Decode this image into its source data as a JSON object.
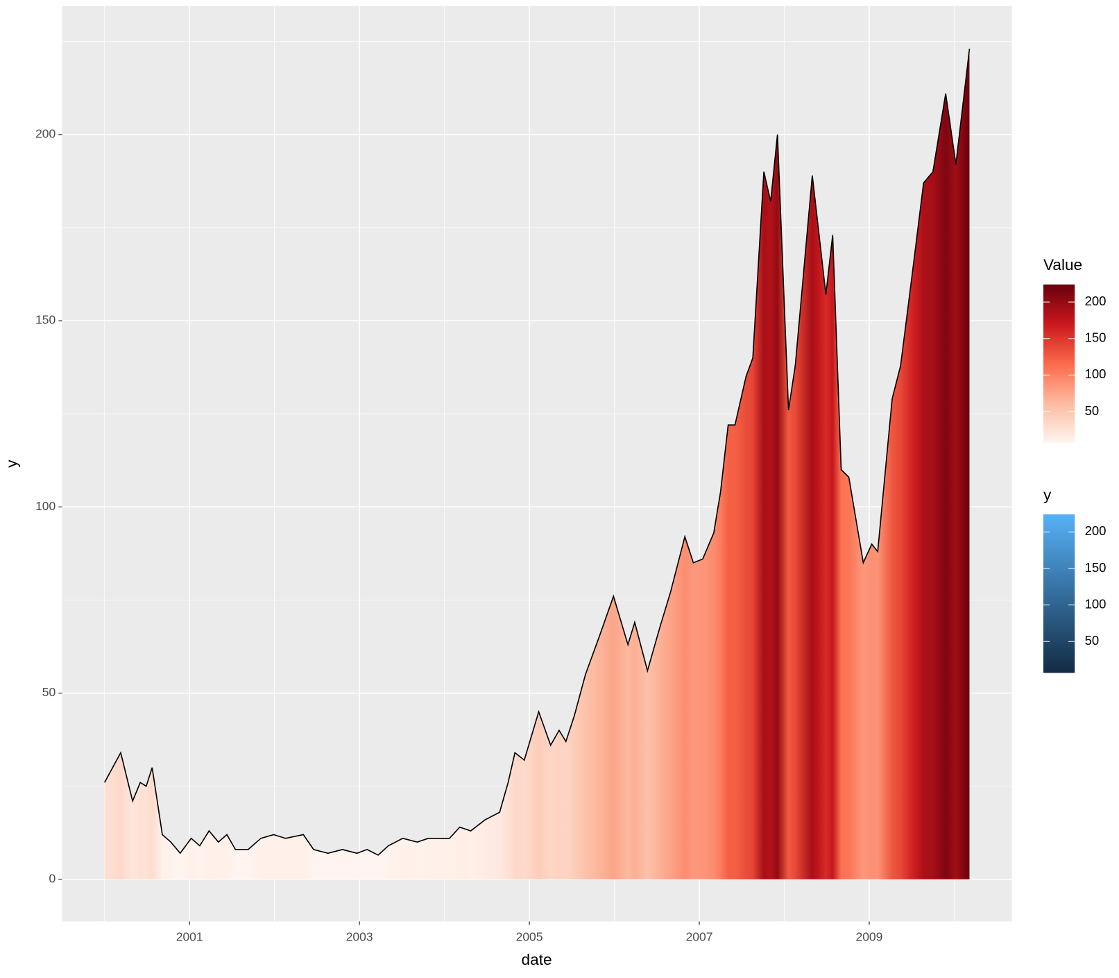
{
  "chart_data": {
    "type": "area",
    "x_label": "date",
    "y_label": "y",
    "x": [
      2000.0,
      2000.19,
      2000.33,
      2000.42,
      2000.49,
      2000.56,
      2000.68,
      2000.78,
      2000.89,
      2001.02,
      2001.12,
      2001.23,
      2001.34,
      2001.44,
      2001.54,
      2001.69,
      2001.84,
      2001.99,
      2002.13,
      2002.34,
      2002.46,
      2002.63,
      2002.8,
      2002.97,
      2003.09,
      2003.22,
      2003.34,
      2003.51,
      2003.68,
      2003.81,
      2004.06,
      2004.18,
      2004.31,
      2004.48,
      2004.65,
      2004.75,
      2004.83,
      2004.94,
      2005.11,
      2005.25,
      2005.35,
      2005.43,
      2005.53,
      2005.66,
      2005.82,
      2005.99,
      2006.16,
      2006.24,
      2006.39,
      2006.54,
      2006.66,
      2006.83,
      2006.93,
      2007.04,
      2007.17,
      2007.25,
      2007.34,
      2007.42,
      2007.55,
      2007.63,
      2007.76,
      2007.84,
      2007.92,
      2008.05,
      2008.13,
      2008.33,
      2008.41,
      2008.49,
      2008.57,
      2008.67,
      2008.76,
      2008.93,
      2009.03,
      2009.1,
      2009.27,
      2009.37,
      2009.52,
      2009.64,
      2009.75,
      2009.9,
      2010.02,
      2010.18
    ],
    "values": [
      26,
      34,
      21,
      26,
      25,
      30,
      12,
      10,
      7,
      11,
      9,
      13,
      10,
      12,
      8,
      8,
      11,
      12,
      11,
      12,
      8,
      7,
      8,
      7,
      8,
      6.5,
      9,
      11,
      10,
      11,
      11,
      14,
      13,
      16,
      18,
      26,
      34,
      32,
      45,
      36,
      40,
      37,
      44,
      55,
      65,
      76,
      63,
      69,
      56,
      68,
      77,
      92,
      85,
      86,
      93,
      104,
      122,
      122,
      135,
      140,
      190,
      182,
      200,
      126,
      138,
      189,
      173,
      157,
      173,
      110,
      108,
      85,
      90,
      88,
      129,
      138,
      165,
      187,
      190,
      211,
      192,
      223
    ],
    "xlim": [
      1999.5,
      2010.68
    ],
    "ylim": [
      -11.3,
      234.5
    ],
    "xticks": [
      2001,
      2003,
      2005,
      2007,
      2009
    ],
    "yticks": [
      0,
      50,
      100,
      150,
      200
    ],
    "grid": true,
    "line_color": "#000000",
    "background": "#ebebeb",
    "legends": [
      {
        "title": "Value",
        "lim": [
          7,
          224
        ],
        "ticks": [
          50,
          100,
          150,
          200
        ],
        "colors": [
          "#fff5f0",
          "#fcbba1",
          "#fb6a4a",
          "#cb181d",
          "#67000d"
        ]
      },
      {
        "title": "y",
        "lim": [
          7,
          224
        ],
        "ticks": [
          50,
          100,
          150,
          200
        ],
        "colors": [
          "#132b43",
          "#56b1f7"
        ]
      }
    ]
  }
}
